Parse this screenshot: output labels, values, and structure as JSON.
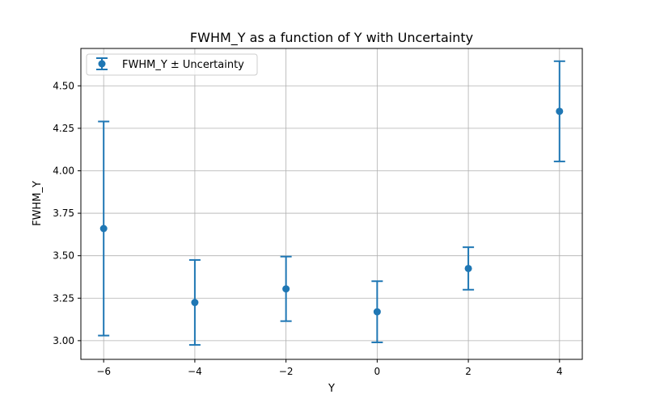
{
  "chart_data": {
    "type": "scatter",
    "title": "FWHM_Y as a function of Y with Uncertainty",
    "xlabel": "Y",
    "ylabel": "FWHM_Y",
    "xlim": [
      -6.5,
      4.5
    ],
    "ylim": [
      2.89,
      4.72
    ],
    "x_ticks": [
      -6,
      -4,
      -2,
      0,
      2,
      4
    ],
    "x_tick_labels": [
      "−6",
      "−4",
      "−2",
      "0",
      "2",
      "4"
    ],
    "y_ticks": [
      3.0,
      3.25,
      3.5,
      3.75,
      4.0,
      4.25,
      4.5
    ],
    "y_tick_labels": [
      "3.00",
      "3.25",
      "3.50",
      "3.75",
      "4.00",
      "4.25",
      "4.50"
    ],
    "grid": true,
    "legend_position": "top-left",
    "series": [
      {
        "name": "FWHM_Y ± Uncertainty",
        "color": "#1f77b4",
        "x": [
          -6,
          -4,
          -2,
          0,
          2,
          4
        ],
        "y": [
          3.66,
          3.225,
          3.305,
          3.17,
          3.425,
          4.35
        ],
        "yerr": [
          0.63,
          0.25,
          0.19,
          0.18,
          0.125,
          0.295
        ]
      }
    ]
  }
}
